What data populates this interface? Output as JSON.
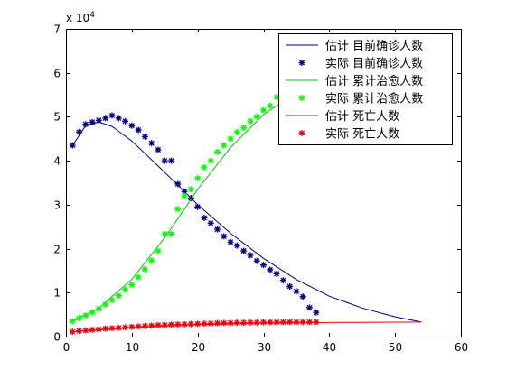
{
  "chart_data": {
    "type": "line",
    "title": "",
    "xlabel": "",
    "ylabel": "",
    "xlim": [
      0,
      60
    ],
    "ylim": [
      0,
      70000
    ],
    "xticks": [
      0,
      10,
      20,
      30,
      40,
      50,
      60
    ],
    "yticks": [
      0,
      10000,
      20000,
      30000,
      40000,
      50000,
      60000,
      70000
    ],
    "ytick_labels": [
      "0",
      "1",
      "2",
      "3",
      "4",
      "5",
      "6",
      "7"
    ],
    "y_exponent_label": "x 10",
    "y_exponent_power": "4",
    "grid": false,
    "legend_position": "top-right",
    "series": [
      {
        "name": "估计 目前确诊人数",
        "style": "line",
        "color": "#00007f",
        "x": [
          1,
          3,
          5,
          7,
          10,
          14,
          18,
          20,
          25,
          30,
          35,
          40,
          45,
          50,
          54
        ],
        "y": [
          43500,
          48000,
          48800,
          47800,
          44500,
          38800,
          33000,
          30000,
          23500,
          17800,
          13000,
          9200,
          6500,
          4500,
          3300
        ]
      },
      {
        "name": "实际 目前确诊人数",
        "style": "marker",
        "marker": "*",
        "color": "#00007f",
        "x": [
          1,
          2,
          3,
          4,
          5,
          6,
          7,
          8,
          9,
          10,
          11,
          12,
          13,
          14,
          15,
          16,
          17,
          18,
          19,
          20,
          21,
          22,
          23,
          24,
          25,
          26,
          27,
          28,
          29,
          30,
          31,
          32,
          33,
          34,
          35,
          36,
          37,
          38
        ],
        "y": [
          43500,
          46500,
          48300,
          48800,
          49200,
          49700,
          50300,
          49700,
          49000,
          48000,
          47000,
          45500,
          44000,
          42500,
          40000,
          40000,
          34700,
          33000,
          31500,
          29500,
          27000,
          25800,
          24400,
          22800,
          21500,
          20700,
          19500,
          18500,
          17200,
          16300,
          15200,
          14300,
          12800,
          11400,
          10300,
          9100,
          6600,
          5500
        ]
      },
      {
        "name": "估计 累计治愈人数",
        "style": "line",
        "color": "#00cc00",
        "x": [
          1,
          5,
          10,
          15,
          18,
          20,
          25,
          30,
          35,
          40,
          45,
          50,
          54
        ],
        "y": [
          3500,
          6500,
          13000,
          22500,
          29000,
          33500,
          43000,
          50500,
          55500,
          58500,
          60500,
          62000,
          63000
        ]
      },
      {
        "name": "实际 累计治愈人数",
        "style": "marker",
        "marker": "*",
        "color": "#00ff00",
        "x": [
          1,
          2,
          3,
          4,
          5,
          6,
          7,
          8,
          9,
          10,
          11,
          12,
          13,
          14,
          15,
          16,
          17,
          18,
          19,
          20,
          21,
          22,
          23,
          24,
          25,
          26,
          27,
          28,
          29,
          30,
          31,
          32
        ],
        "y": [
          3500,
          4200,
          4800,
          5500,
          6300,
          7300,
          8300,
          9300,
          10700,
          11800,
          13500,
          15300,
          17300,
          19500,
          23300,
          23300,
          29000,
          32000,
          33500,
          36000,
          38500,
          40000,
          42000,
          43500,
          45000,
          46500,
          47500,
          49000,
          50000,
          51500,
          52500,
          54500
        ]
      },
      {
        "name": "估计 死亡人数",
        "style": "line",
        "color": "#ff0000",
        "x": [
          1,
          5,
          10,
          15,
          20,
          25,
          30,
          35,
          40,
          45,
          50,
          54
        ],
        "y": [
          1100,
          1500,
          2000,
          2400,
          2700,
          2900,
          3050,
          3150,
          3200,
          3250,
          3280,
          3300
        ]
      },
      {
        "name": "实际 死亡人数",
        "style": "marker",
        "marker": "*",
        "color": "#e8000b",
        "x": [
          1,
          2,
          3,
          4,
          5,
          6,
          7,
          8,
          9,
          10,
          11,
          12,
          13,
          14,
          15,
          16,
          17,
          18,
          19,
          20,
          21,
          22,
          23,
          24,
          25,
          26,
          27,
          28,
          29,
          30,
          31,
          32,
          33,
          34,
          35,
          36,
          37,
          38
        ],
        "y": [
          1100,
          1300,
          1400,
          1550,
          1650,
          1800,
          1900,
          2000,
          2100,
          2200,
          2300,
          2400,
          2500,
          2600,
          2650,
          2700,
          2750,
          2800,
          2850,
          2900,
          2950,
          3000,
          3050,
          3100,
          3100,
          3150,
          3150,
          3200,
          3200,
          3250,
          3250,
          3280,
          3300,
          3300,
          3300,
          3300,
          3300,
          3300
        ]
      }
    ]
  }
}
